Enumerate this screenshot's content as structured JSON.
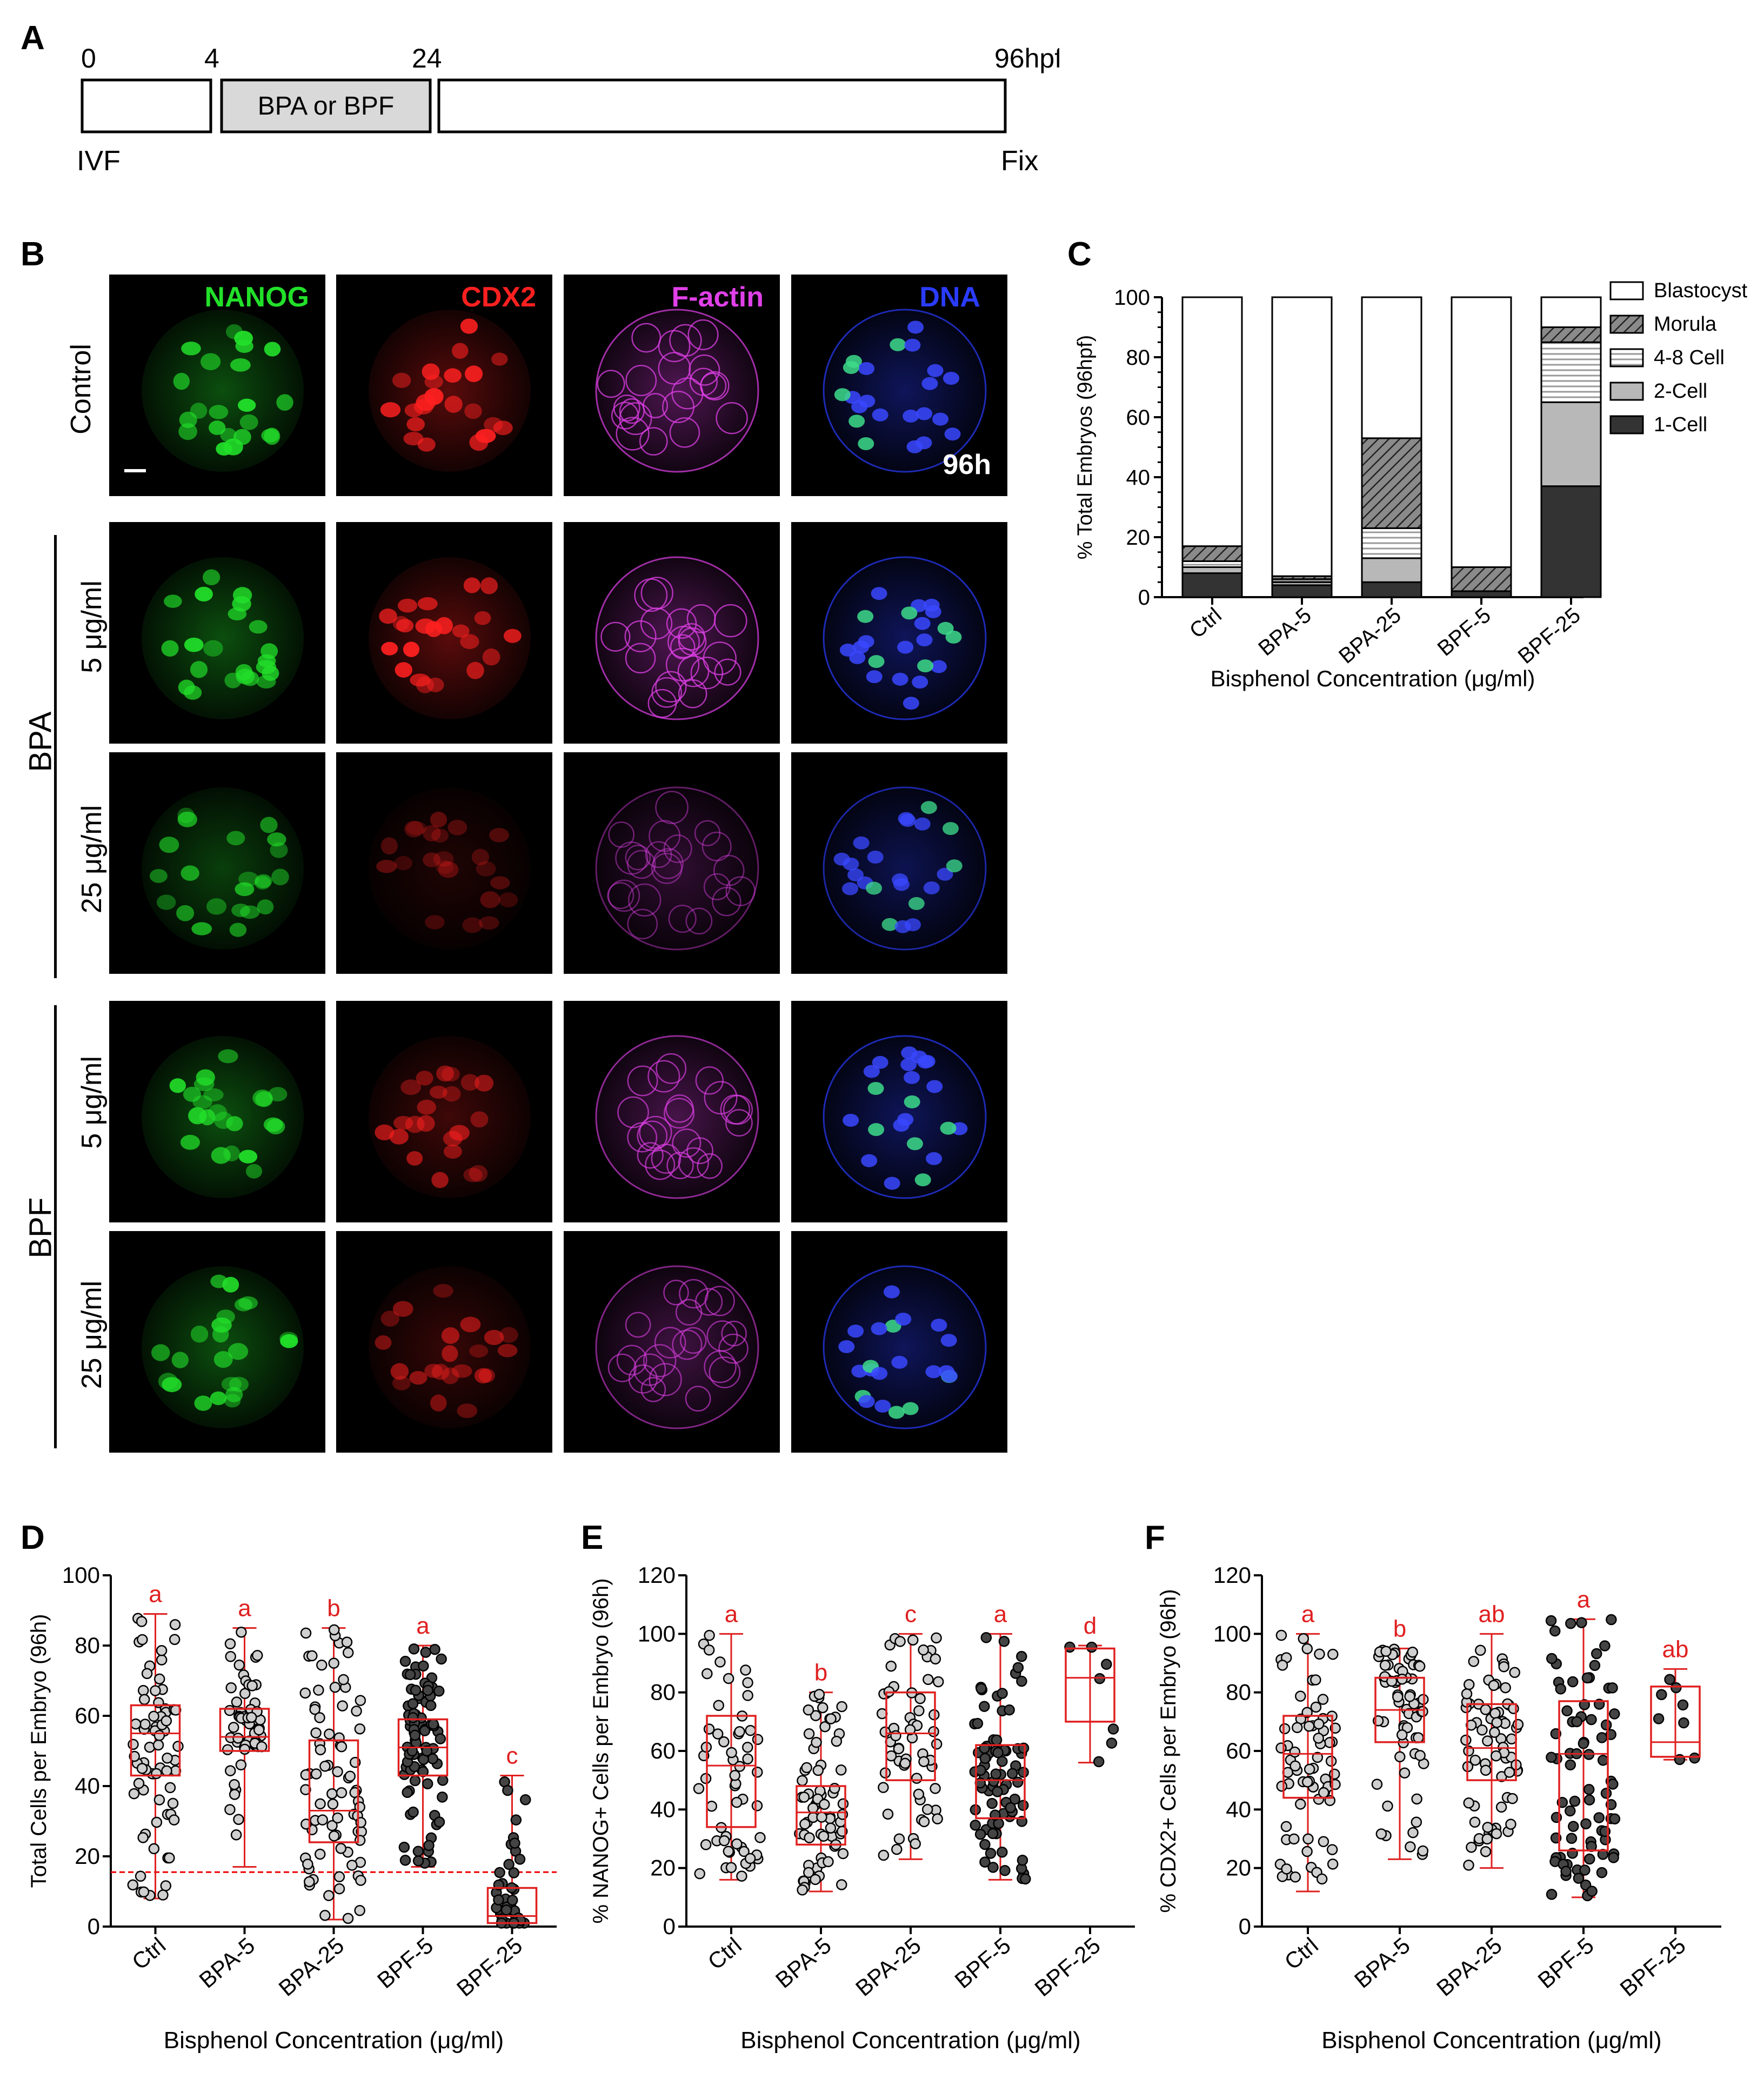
{
  "panels": {
    "a": "A",
    "b": "B",
    "c": "C",
    "d": "D",
    "e": "E",
    "f": "F"
  },
  "timeline": {
    "ticks": [
      "0",
      "4",
      "24",
      "96hpf"
    ],
    "treatment_label": "BPA or BPF",
    "start_label": "IVF",
    "end_label": "Fix"
  },
  "micrograph": {
    "stains": [
      {
        "name": "NANOG",
        "color": "#22e02a"
      },
      {
        "name": "CDX2",
        "color": "#ff2020"
      },
      {
        "name": "F-actin",
        "color": "#e040e8"
      },
      {
        "name": "DNA",
        "color": "#2a3cff"
      }
    ],
    "row_labels": [
      "Control",
      "5 μg/ml",
      "25 μg/ml",
      "5 μg/ml",
      "25 μg/ml"
    ],
    "group_labels": [
      "BPA",
      "BPF"
    ],
    "time_label": "96h"
  },
  "chart_data": [
    {
      "panel": "C",
      "type": "bar",
      "stacked": true,
      "categories": [
        "Ctrl",
        "BPA-5",
        "BPA-25",
        "BPF-5",
        "BPF-25"
      ],
      "series": [
        {
          "name": "1-Cell",
          "values": [
            8,
            4,
            5,
            2,
            37
          ]
        },
        {
          "name": "2-Cell",
          "values": [
            2,
            1,
            8,
            0,
            28
          ]
        },
        {
          "name": "4-8 Cell",
          "values": [
            2,
            1,
            10,
            0,
            20
          ]
        },
        {
          "name": "Morula",
          "values": [
            5,
            1,
            30,
            8,
            5
          ]
        },
        {
          "name": "Blastocyst",
          "values": [
            83,
            93,
            47,
            90,
            10
          ]
        }
      ],
      "ylabel": "% Total Embryos  (96hpf)",
      "xlabel": "Bisphenol Concentration (μg/ml)",
      "ylim": [
        0,
        100
      ],
      "yticks": [
        "0",
        "20",
        "40",
        "60",
        "80",
        "100"
      ],
      "legend_position": "right",
      "fills": {
        "1-Cell": "#333333",
        "2-Cell": "#b8b8b8",
        "4-8 Cell": "hatch-horizontal",
        "Morula": "hatch-diagonal",
        "Blastocyst": "#ffffff"
      }
    },
    {
      "panel": "D",
      "type": "scatter",
      "subtype": "box-and-dot",
      "categories": [
        "Ctrl",
        "BPA-5",
        "BPA-25",
        "BPF-5",
        "BPF-25"
      ],
      "boxes": [
        {
          "min": 8,
          "q1": 43,
          "median": 55,
          "q3": 63,
          "max": 89
        },
        {
          "min": 17,
          "q1": 50,
          "median": 54,
          "q3": 62,
          "max": 85
        },
        {
          "min": 2,
          "q1": 24,
          "median": 33,
          "q3": 53,
          "max": 85
        },
        {
          "min": 17,
          "q1": 43,
          "median": 51,
          "q3": 59,
          "max": 80
        },
        {
          "min": 1,
          "q1": 1,
          "median": 3,
          "q3": 11,
          "max": 43
        }
      ],
      "letters": [
        "a",
        "a",
        "b",
        "a",
        "c"
      ],
      "reference_line": 15.5,
      "ylabel": "Total Cells per Embryo (96h)",
      "xlabel": "Bisphenol Concentration (μg/ml)",
      "ylim": [
        0,
        100
      ],
      "yticks": [
        "0",
        "20",
        "40",
        "60",
        "80",
        "100"
      ]
    },
    {
      "panel": "E",
      "type": "scatter",
      "subtype": "box-and-dot",
      "categories": [
        "Ctrl",
        "BPA-5",
        "BPA-25",
        "BPF-5",
        "BPF-25"
      ],
      "boxes": [
        {
          "min": 16,
          "q1": 34,
          "median": 55,
          "q3": 72,
          "max": 100
        },
        {
          "min": 12,
          "q1": 28,
          "median": 39,
          "q3": 48,
          "max": 80
        },
        {
          "min": 23,
          "q1": 50,
          "median": 66,
          "q3": 80,
          "max": 100
        },
        {
          "min": 16,
          "q1": 37,
          "median": 50,
          "q3": 62,
          "max": 100
        },
        {
          "min": 56,
          "q1": 70,
          "median": 85,
          "q3": 95,
          "max": 96
        }
      ],
      "letters": [
        "a",
        "b",
        "c",
        "a",
        "d"
      ],
      "ylabel": "% NANOG+ Cells per  Embryo (96h)",
      "xlabel": "Bisphenol Concentration (μg/ml)",
      "ylim": [
        0,
        120
      ],
      "yticks": [
        "0",
        "20",
        "40",
        "60",
        "80",
        "100",
        "120"
      ]
    },
    {
      "panel": "F",
      "type": "scatter",
      "subtype": "box-and-dot",
      "categories": [
        "Ctrl",
        "BPA-5",
        "BPA-25",
        "BPF-5",
        "BPF-25"
      ],
      "boxes": [
        {
          "min": 12,
          "q1": 44,
          "median": 59,
          "q3": 72,
          "max": 100
        },
        {
          "min": 23,
          "q1": 63,
          "median": 74,
          "q3": 85,
          "max": 95
        },
        {
          "min": 20,
          "q1": 50,
          "median": 61,
          "q3": 76,
          "max": 100
        },
        {
          "min": 10,
          "q1": 26,
          "median": 59,
          "q3": 77,
          "max": 105
        },
        {
          "min": 57,
          "q1": 58,
          "median": 63,
          "q3": 82,
          "max": 88
        }
      ],
      "letters": [
        "a",
        "b",
        "ab",
        "a",
        "ab"
      ],
      "ylabel": "% CDX2+ Cells per Embryo (96h)",
      "xlabel": "Bisphenol Concentration (μg/ml)",
      "ylim": [
        0,
        120
      ],
      "yticks": [
        "0",
        "20",
        "40",
        "60",
        "80",
        "100",
        "120"
      ]
    }
  ]
}
